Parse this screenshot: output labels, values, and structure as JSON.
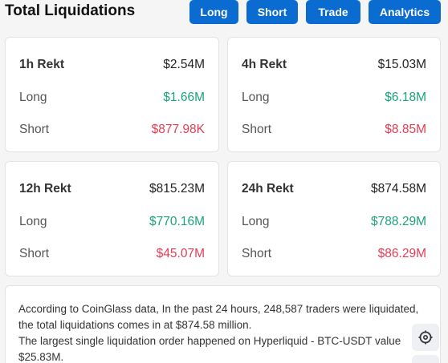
{
  "header": {
    "title": "Total Liquidations",
    "buttons": [
      "Long",
      "Short",
      "Trade",
      "Analytics"
    ]
  },
  "cards": [
    {
      "period": "1h Rekt",
      "total": "$2.54M",
      "long_label": "Long",
      "long": "$1.66M",
      "short_label": "Short",
      "short": "$877.98K"
    },
    {
      "period": "4h Rekt",
      "total": "$15.03M",
      "long_label": "Long",
      "long": "$6.18M",
      "short_label": "Short",
      "short": "$8.85M"
    },
    {
      "period": "12h Rekt",
      "total": "$815.23M",
      "long_label": "Long",
      "long": "$770.16M",
      "short_label": "Short",
      "short": "$45.07M"
    },
    {
      "period": "24h Rekt",
      "total": "$874.58M",
      "long_label": "Long",
      "long": "$788.29M",
      "short_label": "Short",
      "short": "$86.29M"
    }
  ],
  "info": {
    "line1": "According to CoinGlass data, In the past 24 hours, 248,587 traders were liquidated, the total liquidations comes in at $874.58 million.",
    "line2": "The largest single liquidation order happened on Hyperliquid - BTC-USDT value $25.83M."
  },
  "icons": {
    "float_button": "settings-icon"
  },
  "colors": {
    "accent": "#0a6bd1",
    "long": "#1aa37a",
    "short": "#e33d55"
  }
}
